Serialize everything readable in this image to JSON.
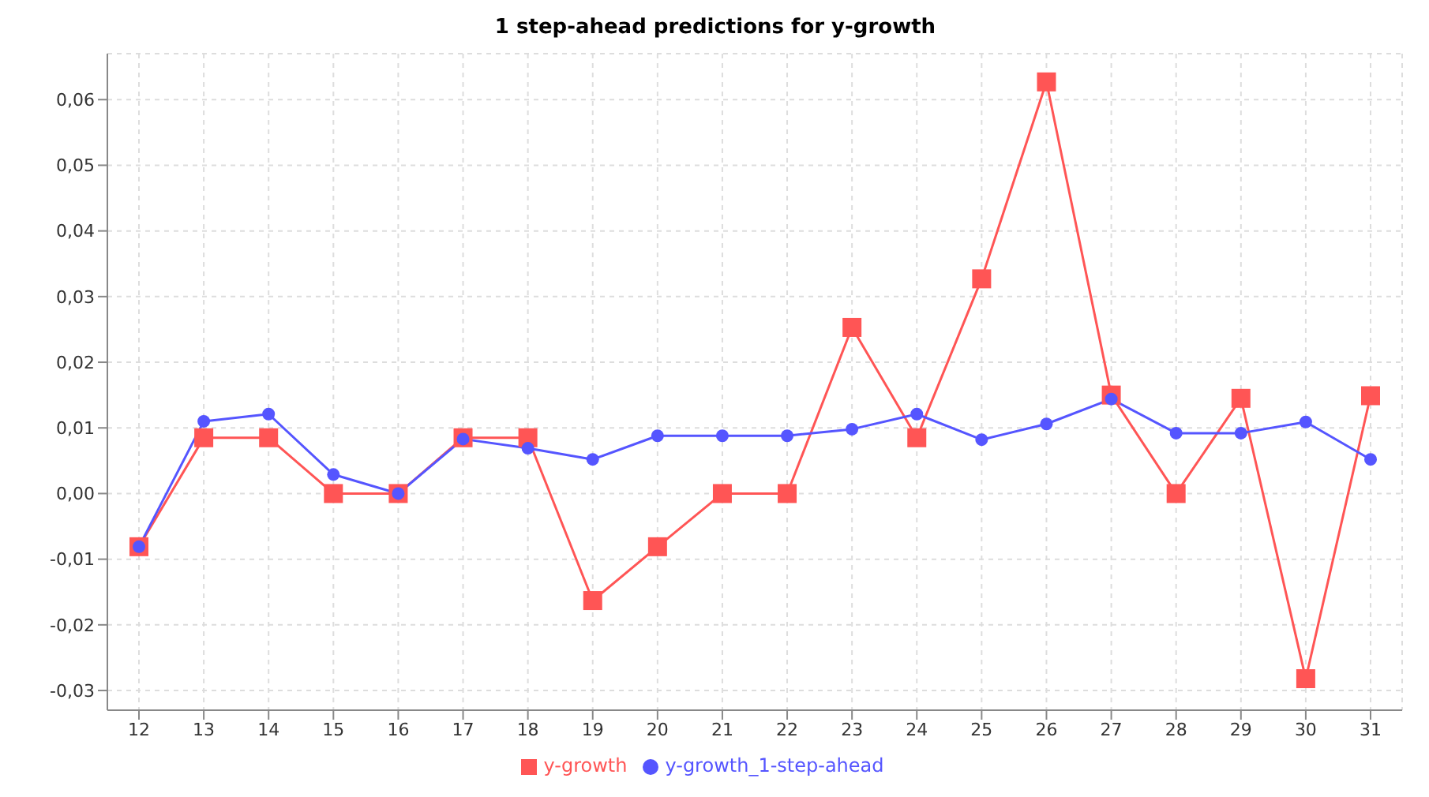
{
  "chart_data": {
    "type": "line",
    "title": "1 step-ahead predictions for y-growth",
    "categories": [
      "12",
      "13",
      "14",
      "15",
      "16",
      "17",
      "18",
      "19",
      "20",
      "21",
      "22",
      "23",
      "24",
      "25",
      "26",
      "27",
      "28",
      "29",
      "30",
      "31"
    ],
    "series": [
      {
        "name": "y-growth",
        "color": "#ff5555",
        "marker": "square",
        "values": [
          -0.0081,
          0.0085,
          0.0085,
          0,
          0,
          0.0085,
          0.0085,
          -0.0163,
          -0.0081,
          0,
          0,
          0.0253,
          0.0085,
          0.0327,
          0.0627,
          0.015,
          0,
          0.0145,
          -0.0282,
          0.0149
        ]
      },
      {
        "name": "y-growth_1-step-ahead",
        "color": "#5555ff",
        "marker": "circle",
        "values": [
          -0.0081,
          0.011,
          0.0121,
          0.0029,
          0,
          0.0083,
          0.0069,
          0.0052,
          0.0088,
          0.0088,
          0.0088,
          0.0098,
          0.0121,
          0.0082,
          0.0106,
          0.0144,
          0.0092,
          0.0092,
          0.0109,
          0.0052
        ]
      }
    ],
    "ylim": [
      -0.033,
      0.067
    ],
    "yticks": [
      {
        "value": -0.03,
        "label": "-0,03"
      },
      {
        "value": -0.02,
        "label": "-0,02"
      },
      {
        "value": -0.01,
        "label": "-0,01"
      },
      {
        "value": 0,
        "label": "0,00"
      },
      {
        "value": 0.01,
        "label": "0,01"
      },
      {
        "value": 0.02,
        "label": "0,02"
      },
      {
        "value": 0.03,
        "label": "0,03"
      },
      {
        "value": 0.04,
        "label": "0,04"
      },
      {
        "value": 0.05,
        "label": "0,05"
      },
      {
        "value": 0.06,
        "label": "0,06"
      }
    ],
    "grid": true,
    "legend": "bottom",
    "line_style": "solid"
  }
}
